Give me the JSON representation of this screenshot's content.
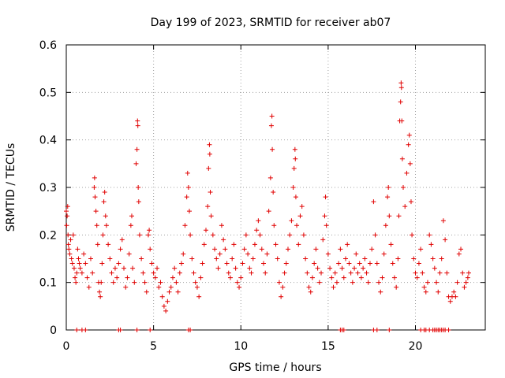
{
  "chart_data": {
    "type": "scatter",
    "title": "Day 199 of 2023, SRMTID for receiver ab07",
    "xlabel": "GPS time / hours",
    "ylabel": "SRMTID / TECUs",
    "xlim": [
      0,
      24
    ],
    "ylim": [
      0,
      0.6
    ],
    "x_ticks": [
      0,
      5,
      10,
      15,
      20
    ],
    "x_tick_labels": [
      "0",
      "5",
      "10",
      "15",
      "20"
    ],
    "y_ticks": [
      0,
      0.1,
      0.2,
      0.3,
      0.4,
      0.5,
      0.6
    ],
    "y_tick_labels": [
      "0",
      "0.1",
      "0.2",
      "0.3",
      "0.4",
      "0.5",
      "0.6"
    ],
    "grid": true,
    "series": [
      {
        "name": "SRMTID",
        "color": "#e00000",
        "marker": "plus",
        "points": [
          [
            0.0,
            0.25
          ],
          [
            0.02,
            0.22
          ],
          [
            0.05,
            0.24
          ],
          [
            0.08,
            0.26
          ],
          [
            0.1,
            0.2
          ],
          [
            0.12,
            0.18
          ],
          [
            0.15,
            0.17
          ],
          [
            0.2,
            0.16
          ],
          [
            0.25,
            0.19
          ],
          [
            0.3,
            0.15
          ],
          [
            0.35,
            0.14
          ],
          [
            0.4,
            0.2
          ],
          [
            0.45,
            0.13
          ],
          [
            0.5,
            0.11
          ],
          [
            0.55,
            0.1
          ],
          [
            0.6,
            0.12
          ],
          [
            0.65,
            0.17
          ],
          [
            0.7,
            0.15
          ],
          [
            0.75,
            0.14
          ],
          [
            0.8,
            0.13
          ],
          [
            0.9,
            0.12
          ],
          [
            1.0,
            0.16
          ],
          [
            1.1,
            0.14
          ],
          [
            1.2,
            0.11
          ],
          [
            1.3,
            0.09
          ],
          [
            1.4,
            0.15
          ],
          [
            1.5,
            0.12
          ],
          [
            1.6,
            0.3
          ],
          [
            1.62,
            0.32
          ],
          [
            1.65,
            0.28
          ],
          [
            1.7,
            0.25
          ],
          [
            1.75,
            0.22
          ],
          [
            1.8,
            0.18
          ],
          [
            1.85,
            0.1
          ],
          [
            1.9,
            0.08
          ],
          [
            1.95,
            0.07
          ],
          [
            2.0,
            0.1
          ],
          [
            2.05,
            0.14
          ],
          [
            2.1,
            0.2
          ],
          [
            2.15,
            0.27
          ],
          [
            2.2,
            0.29
          ],
          [
            2.25,
            0.24
          ],
          [
            2.3,
            0.22
          ],
          [
            2.4,
            0.18
          ],
          [
            2.5,
            0.15
          ],
          [
            2.6,
            0.12
          ],
          [
            2.7,
            0.1
          ],
          [
            2.8,
            0.13
          ],
          [
            2.9,
            0.11
          ],
          [
            3.0,
            0.14
          ],
          [
            3.1,
            0.17
          ],
          [
            3.2,
            0.19
          ],
          [
            3.3,
            0.13
          ],
          [
            3.4,
            0.09
          ],
          [
            3.5,
            0.11
          ],
          [
            3.6,
            0.16
          ],
          [
            3.7,
            0.22
          ],
          [
            3.75,
            0.24
          ],
          [
            3.8,
            0.13
          ],
          [
            3.9,
            0.1
          ],
          [
            4.0,
            0.35
          ],
          [
            4.05,
            0.38
          ],
          [
            4.08,
            0.44
          ],
          [
            4.1,
            0.43
          ],
          [
            4.12,
            0.3
          ],
          [
            4.15,
            0.27
          ],
          [
            4.2,
            0.2
          ],
          [
            4.3,
            0.15
          ],
          [
            4.4,
            0.12
          ],
          [
            4.5,
            0.1
          ],
          [
            4.6,
            0.08
          ],
          [
            4.7,
            0.2
          ],
          [
            4.75,
            0.21
          ],
          [
            4.8,
            0.17
          ],
          [
            4.9,
            0.14
          ],
          [
            5.0,
            0.12
          ],
          [
            5.1,
            0.11
          ],
          [
            5.2,
            0.13
          ],
          [
            5.3,
            0.09
          ],
          [
            5.4,
            0.1
          ],
          [
            5.5,
            0.07
          ],
          [
            5.6,
            0.05
          ],
          [
            5.7,
            0.04
          ],
          [
            5.8,
            0.06
          ],
          [
            5.9,
            0.08
          ],
          [
            6.0,
            0.09
          ],
          [
            6.1,
            0.11
          ],
          [
            6.2,
            0.13
          ],
          [
            6.3,
            0.1
          ],
          [
            6.4,
            0.08
          ],
          [
            6.5,
            0.12
          ],
          [
            6.6,
            0.14
          ],
          [
            6.7,
            0.16
          ],
          [
            6.8,
            0.22
          ],
          [
            6.9,
            0.28
          ],
          [
            6.95,
            0.33
          ],
          [
            7.0,
            0.3
          ],
          [
            7.05,
            0.25
          ],
          [
            7.1,
            0.2
          ],
          [
            7.2,
            0.15
          ],
          [
            7.3,
            0.12
          ],
          [
            7.4,
            0.1
          ],
          [
            7.5,
            0.09
          ],
          [
            7.6,
            0.07
          ],
          [
            7.7,
            0.11
          ],
          [
            7.8,
            0.14
          ],
          [
            7.9,
            0.18
          ],
          [
            8.0,
            0.21
          ],
          [
            8.1,
            0.26
          ],
          [
            8.15,
            0.34
          ],
          [
            8.2,
            0.39
          ],
          [
            8.22,
            0.37
          ],
          [
            8.25,
            0.29
          ],
          [
            8.3,
            0.24
          ],
          [
            8.4,
            0.2
          ],
          [
            8.5,
            0.17
          ],
          [
            8.6,
            0.15
          ],
          [
            8.7,
            0.13
          ],
          [
            8.8,
            0.16
          ],
          [
            8.9,
            0.22
          ],
          [
            9.0,
            0.19
          ],
          [
            9.1,
            0.17
          ],
          [
            9.2,
            0.14
          ],
          [
            9.3,
            0.12
          ],
          [
            9.4,
            0.11
          ],
          [
            9.5,
            0.15
          ],
          [
            9.6,
            0.18
          ],
          [
            9.7,
            0.13
          ],
          [
            9.8,
            0.1
          ],
          [
            9.9,
            0.09
          ],
          [
            10.0,
            0.11
          ],
          [
            10.1,
            0.14
          ],
          [
            10.2,
            0.17
          ],
          [
            10.3,
            0.2
          ],
          [
            10.4,
            0.16
          ],
          [
            10.5,
            0.13
          ],
          [
            10.6,
            0.12
          ],
          [
            10.7,
            0.15
          ],
          [
            10.8,
            0.18
          ],
          [
            10.9,
            0.21
          ],
          [
            11.0,
            0.23
          ],
          [
            11.1,
            0.2
          ],
          [
            11.2,
            0.17
          ],
          [
            11.3,
            0.14
          ],
          [
            11.4,
            0.12
          ],
          [
            11.5,
            0.16
          ],
          [
            11.6,
            0.25
          ],
          [
            11.7,
            0.32
          ],
          [
            11.75,
            0.43
          ],
          [
            11.78,
            0.45
          ],
          [
            11.8,
            0.38
          ],
          [
            11.85,
            0.29
          ],
          [
            11.9,
            0.22
          ],
          [
            12.0,
            0.18
          ],
          [
            12.1,
            0.15
          ],
          [
            12.2,
            0.1
          ],
          [
            12.3,
            0.07
          ],
          [
            12.4,
            0.09
          ],
          [
            12.5,
            0.12
          ],
          [
            12.6,
            0.14
          ],
          [
            12.7,
            0.17
          ],
          [
            12.8,
            0.2
          ],
          [
            12.9,
            0.23
          ],
          [
            13.0,
            0.3
          ],
          [
            13.05,
            0.34
          ],
          [
            13.1,
            0.38
          ],
          [
            13.12,
            0.36
          ],
          [
            13.15,
            0.28
          ],
          [
            13.2,
            0.22
          ],
          [
            13.3,
            0.18
          ],
          [
            13.4,
            0.24
          ],
          [
            13.5,
            0.26
          ],
          [
            13.6,
            0.2
          ],
          [
            13.7,
            0.15
          ],
          [
            13.8,
            0.12
          ],
          [
            13.9,
            0.09
          ],
          [
            14.0,
            0.08
          ],
          [
            14.1,
            0.11
          ],
          [
            14.2,
            0.14
          ],
          [
            14.3,
            0.17
          ],
          [
            14.4,
            0.13
          ],
          [
            14.5,
            0.1
          ],
          [
            14.6,
            0.12
          ],
          [
            14.7,
            0.19
          ],
          [
            14.8,
            0.24
          ],
          [
            14.85,
            0.28
          ],
          [
            14.9,
            0.22
          ],
          [
            15.0,
            0.16
          ],
          [
            15.1,
            0.13
          ],
          [
            15.2,
            0.11
          ],
          [
            15.3,
            0.09
          ],
          [
            15.4,
            0.12
          ],
          [
            15.5,
            0.1
          ],
          [
            15.6,
            0.14
          ],
          [
            15.7,
            0.17
          ],
          [
            15.8,
            0.13
          ],
          [
            15.9,
            0.11
          ],
          [
            16.0,
            0.15
          ],
          [
            16.1,
            0.18
          ],
          [
            16.2,
            0.14
          ],
          [
            16.3,
            0.12
          ],
          [
            16.4,
            0.1
          ],
          [
            16.5,
            0.13
          ],
          [
            16.6,
            0.16
          ],
          [
            16.7,
            0.12
          ],
          [
            16.8,
            0.14
          ],
          [
            16.9,
            0.11
          ],
          [
            17.0,
            0.13
          ],
          [
            17.1,
            0.15
          ],
          [
            17.2,
            0.12
          ],
          [
            17.3,
            0.1
          ],
          [
            17.4,
            0.14
          ],
          [
            17.5,
            0.17
          ],
          [
            17.6,
            0.27
          ],
          [
            17.7,
            0.2
          ],
          [
            17.8,
            0.14
          ],
          [
            17.9,
            0.1
          ],
          [
            18.0,
            0.08
          ],
          [
            18.1,
            0.11
          ],
          [
            18.2,
            0.16
          ],
          [
            18.3,
            0.22
          ],
          [
            18.4,
            0.28
          ],
          [
            18.45,
            0.3
          ],
          [
            18.5,
            0.24
          ],
          [
            18.6,
            0.18
          ],
          [
            18.7,
            0.14
          ],
          [
            18.8,
            0.11
          ],
          [
            18.9,
            0.09
          ],
          [
            19.0,
            0.15
          ],
          [
            19.05,
            0.24
          ],
          [
            19.1,
            0.44
          ],
          [
            19.15,
            0.48
          ],
          [
            19.18,
            0.52
          ],
          [
            19.2,
            0.51
          ],
          [
            19.22,
            0.44
          ],
          [
            19.25,
            0.36
          ],
          [
            19.3,
            0.3
          ],
          [
            19.4,
            0.26
          ],
          [
            19.5,
            0.33
          ],
          [
            19.6,
            0.39
          ],
          [
            19.65,
            0.41
          ],
          [
            19.7,
            0.35
          ],
          [
            19.75,
            0.27
          ],
          [
            19.8,
            0.2
          ],
          [
            19.9,
            0.15
          ],
          [
            20.0,
            0.12
          ],
          [
            20.1,
            0.11
          ],
          [
            20.2,
            0.14
          ],
          [
            20.3,
            0.17
          ],
          [
            20.4,
            0.12
          ],
          [
            20.5,
            0.09
          ],
          [
            20.6,
            0.08
          ],
          [
            20.7,
            0.1
          ],
          [
            20.8,
            0.2
          ],
          [
            20.9,
            0.18
          ],
          [
            21.0,
            0.15
          ],
          [
            21.1,
            0.13
          ],
          [
            21.2,
            0.1
          ],
          [
            21.3,
            0.08
          ],
          [
            21.4,
            0.12
          ],
          [
            21.5,
            0.15
          ],
          [
            21.6,
            0.23
          ],
          [
            21.7,
            0.19
          ],
          [
            21.8,
            0.12
          ],
          [
            21.9,
            0.07
          ],
          [
            22.0,
            0.06
          ],
          [
            22.1,
            0.07
          ],
          [
            22.2,
            0.08
          ],
          [
            22.3,
            0.07
          ],
          [
            22.4,
            0.1
          ],
          [
            22.5,
            0.16
          ],
          [
            22.6,
            0.17
          ],
          [
            22.7,
            0.12
          ],
          [
            22.8,
            0.09
          ],
          [
            22.9,
            0.1
          ],
          [
            23.0,
            0.11
          ],
          [
            23.05,
            0.12
          ],
          [
            0.6,
            0.0
          ],
          [
            0.9,
            0.0
          ],
          [
            1.1,
            0.0
          ],
          [
            3.0,
            0.0
          ],
          [
            3.1,
            0.0
          ],
          [
            4.05,
            0.0
          ],
          [
            4.8,
            0.0
          ],
          [
            7.0,
            0.0
          ],
          [
            7.1,
            0.0
          ],
          [
            15.7,
            0.0
          ],
          [
            15.8,
            0.0
          ],
          [
            15.9,
            0.0
          ],
          [
            17.6,
            0.0
          ],
          [
            17.8,
            0.0
          ],
          [
            18.5,
            0.0
          ],
          [
            20.3,
            0.0
          ],
          [
            20.5,
            0.0
          ],
          [
            20.6,
            0.0
          ],
          [
            20.8,
            0.0
          ],
          [
            21.0,
            0.0
          ],
          [
            21.1,
            0.0
          ],
          [
            21.2,
            0.0
          ],
          [
            21.3,
            0.0
          ],
          [
            21.4,
            0.0
          ],
          [
            21.5,
            0.0
          ],
          [
            21.6,
            0.0
          ],
          [
            21.7,
            0.0
          ],
          [
            21.9,
            0.0
          ]
        ]
      }
    ]
  }
}
